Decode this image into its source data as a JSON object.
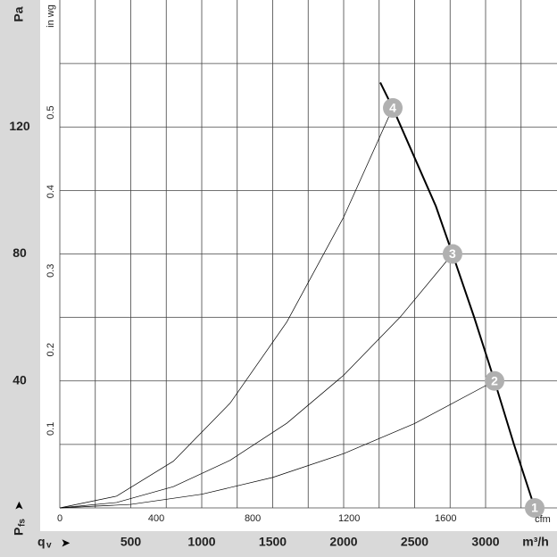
{
  "chart_data": {
    "type": "line",
    "y_unit": "Pa",
    "y2_unit": "in wg",
    "x_unit": "m³/h",
    "x2_unit": "cfm",
    "x_symbol": "q",
    "x_symbol_sub": "v",
    "y_symbol": "P",
    "y_symbol_sub": "fs",
    "xlim": [
      0,
      3478
    ],
    "xticks": [
      500,
      1000,
      1500,
      2000,
      2500,
      3000
    ],
    "x2lim": [
      0,
      2047
    ],
    "x2ticks": [
      0,
      400,
      800,
      1200,
      1600
    ],
    "ylim": [
      0,
      160
    ],
    "yticks": [
      40,
      80,
      120
    ],
    "y2lim": [
      0,
      0.6423
    ],
    "y2ticks": [
      0.1,
      0.2,
      0.3,
      0.4,
      0.5
    ],
    "xgrid": [
      0,
      250,
      500,
      750,
      1000,
      1250,
      1500,
      1750,
      2000,
      2250,
      2500,
      2750,
      3000,
      3250
    ],
    "ygrid": [
      20,
      40,
      60,
      80,
      100,
      120,
      140
    ],
    "series": [
      {
        "name": "fan",
        "color": "#000000",
        "width": 2,
        "x": [
          2258,
          2346,
          2503,
          2650,
          2767,
          2920,
          3063,
          3200,
          3346
        ],
        "values": [
          134,
          126,
          110,
          95,
          80,
          60,
          40,
          20,
          0
        ]
      },
      {
        "name": "system 4",
        "color": "#000000",
        "width": 0.7,
        "x": [
          0,
          400,
          800,
          1200,
          1600,
          2000,
          2346
        ],
        "values": [
          0,
          3.7,
          14.7,
          33.0,
          58.6,
          91.6,
          126
        ]
      },
      {
        "name": "system 3",
        "color": "#000000",
        "width": 0.7,
        "x": [
          0,
          400,
          800,
          1200,
          1600,
          2000,
          2400,
          2767
        ],
        "values": [
          0,
          1.7,
          6.7,
          15.0,
          26.7,
          41.8,
          60.2,
          80
        ]
      },
      {
        "name": "system 2",
        "color": "#000000",
        "width": 0.7,
        "x": [
          0,
          500,
          1000,
          1500,
          2000,
          2500,
          3063
        ],
        "values": [
          0,
          1.1,
          4.3,
          9.6,
          17.1,
          26.6,
          40
        ]
      }
    ],
    "points": {
      "color": "#b0b0b0",
      "labels": [
        "1",
        "2",
        "3",
        "4"
      ],
      "x": [
        3346,
        3063,
        2767,
        2346
      ],
      "values": [
        0,
        40,
        80,
        126
      ]
    }
  }
}
